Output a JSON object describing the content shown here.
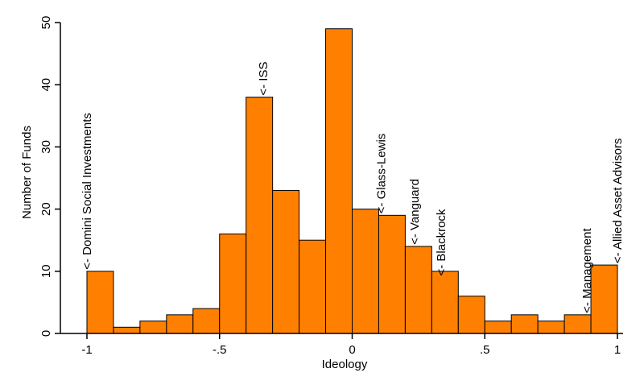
{
  "chart_data": {
    "type": "bar",
    "subtype": "histogram",
    "xlabel": "Ideology",
    "ylabel": "Number of Funds",
    "xlim": [
      -1.0,
      1.0
    ],
    "ylim": [
      0,
      50
    ],
    "bin_width": 0.1,
    "bins": [
      {
        "start": -1.0,
        "count": 10
      },
      {
        "start": -0.9,
        "count": 1
      },
      {
        "start": -0.8,
        "count": 2
      },
      {
        "start": -0.7,
        "count": 3
      },
      {
        "start": -0.6,
        "count": 4
      },
      {
        "start": -0.5,
        "count": 16
      },
      {
        "start": -0.4,
        "count": 38
      },
      {
        "start": -0.3,
        "count": 23
      },
      {
        "start": -0.2,
        "count": 15
      },
      {
        "start": -0.1,
        "count": 49
      },
      {
        "start": 0.0,
        "count": 20
      },
      {
        "start": 0.1,
        "count": 19
      },
      {
        "start": 0.2,
        "count": 14
      },
      {
        "start": 0.3,
        "count": 10
      },
      {
        "start": 0.4,
        "count": 6
      },
      {
        "start": 0.5,
        "count": 2
      },
      {
        "start": 0.6,
        "count": 3
      },
      {
        "start": 0.7,
        "count": 2
      },
      {
        "start": 0.8,
        "count": 3
      },
      {
        "start": 0.9,
        "count": 11
      }
    ],
    "x_ticks": [
      {
        "value": -1.0,
        "label": "-1"
      },
      {
        "value": -0.5,
        "label": "-.5"
      },
      {
        "value": 0.0,
        "label": "0"
      },
      {
        "value": 0.5,
        "label": ".5"
      },
      {
        "value": 1.0,
        "label": "1"
      }
    ],
    "y_ticks": [
      {
        "value": 0,
        "label": "0"
      },
      {
        "value": 10,
        "label": "10"
      },
      {
        "value": 20,
        "label": "20"
      },
      {
        "value": 30,
        "label": "30"
      },
      {
        "value": 40,
        "label": "40"
      },
      {
        "value": 50,
        "label": "50"
      }
    ],
    "annotations": [
      {
        "x": -1.0,
        "y": 10,
        "text": "<- Domini Social Investments"
      },
      {
        "x": -0.335,
        "y": 38,
        "text": "<- ISS"
      },
      {
        "x": 0.11,
        "y": 19,
        "text": "<- Glass-Lewis"
      },
      {
        "x": 0.235,
        "y": 14,
        "text": "<- Vanguard"
      },
      {
        "x": 0.335,
        "y": 9,
        "text": "<- Blackrock"
      },
      {
        "x": 0.885,
        "y": 3,
        "text": "<- Management"
      },
      {
        "x": 1.0,
        "y": 11,
        "text": "<- Allied Asset Advisors"
      }
    ],
    "bar_color": "#ff8000",
    "bar_edge_color": "#000000",
    "grid": false,
    "legend": "none"
  }
}
